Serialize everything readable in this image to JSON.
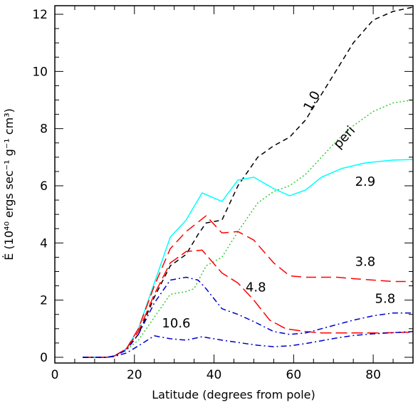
{
  "chart_data": {
    "type": "line",
    "xlabel": "Latitude (degrees from pole)",
    "ylabel": "Ė (10⁴⁰ ergs sec⁻¹ g⁻¹ cm³)",
    "xlim": [
      0,
      90
    ],
    "ylim": [
      -0.2,
      12.3
    ],
    "xticks": [
      0,
      20,
      40,
      60,
      80
    ],
    "yticks": [
      0,
      2,
      4,
      6,
      8,
      10,
      12
    ],
    "grid": false,
    "series": [
      {
        "name": "1.0",
        "color": "#000000",
        "dash": "7,5",
        "x": [
          7,
          10,
          13,
          15,
          18,
          21,
          25,
          29,
          33,
          36,
          38,
          42,
          46,
          51,
          55,
          59,
          63,
          67,
          71,
          75,
          80,
          85,
          90
        ],
        "y": [
          0,
          0,
          0,
          0.05,
          0.3,
          0.8,
          2.1,
          3.2,
          3.6,
          4.3,
          4.7,
          4.8,
          6.0,
          7.0,
          7.4,
          7.7,
          8.3,
          9.2,
          10.1,
          11.0,
          11.8,
          12.1,
          12.25
        ]
      },
      {
        "name": "peri",
        "color": "#33cc33",
        "dash": "2,3",
        "x": [
          7,
          10,
          13,
          15,
          18,
          21,
          25,
          29,
          33,
          35,
          38,
          42,
          46,
          51,
          55,
          59,
          63,
          67,
          71,
          75,
          80,
          85,
          90
        ],
        "y": [
          0,
          0,
          0,
          0.05,
          0.25,
          0.6,
          1.4,
          2.2,
          2.3,
          2.4,
          3.2,
          3.5,
          4.4,
          5.4,
          5.8,
          6.0,
          6.4,
          7.0,
          7.6,
          8.1,
          8.6,
          8.9,
          9.0
        ]
      },
      {
        "name": "2.9",
        "color": "#00ffff",
        "dash": "",
        "x": [
          7,
          10,
          13,
          15,
          18,
          21,
          25,
          29,
          33,
          37,
          42,
          46,
          50,
          55,
          59,
          63,
          67,
          72,
          78,
          85,
          90
        ],
        "y": [
          0,
          0,
          0,
          0.05,
          0.3,
          1.0,
          2.6,
          4.2,
          4.8,
          5.75,
          5.45,
          6.2,
          6.3,
          5.9,
          5.65,
          5.85,
          6.3,
          6.6,
          6.8,
          6.9,
          6.92
        ]
      },
      {
        "name": "3.8",
        "color": "#ff0000",
        "dash": "14,7",
        "x": [
          7,
          10,
          13,
          15,
          18,
          21,
          25,
          29,
          33,
          38,
          42,
          46,
          50,
          55,
          59,
          63,
          67,
          71,
          75,
          80,
          85,
          90
        ],
        "y": [
          0,
          0,
          0,
          0.05,
          0.3,
          1.0,
          2.5,
          3.8,
          4.4,
          4.95,
          4.35,
          4.4,
          4.1,
          3.3,
          2.85,
          2.8,
          2.8,
          2.8,
          2.75,
          2.7,
          2.65,
          2.65
        ]
      },
      {
        "name": "4.8",
        "color": "#ff0000",
        "dash": "16,6",
        "x": [
          7,
          10,
          13,
          15,
          18,
          21,
          25,
          29,
          33,
          37,
          42,
          46,
          50,
          54,
          58,
          63,
          67,
          71,
          75,
          80,
          85,
          90
        ],
        "y": [
          0,
          0,
          0,
          0.05,
          0.3,
          0.9,
          2.2,
          3.3,
          3.7,
          3.75,
          2.95,
          2.6,
          2.0,
          1.3,
          1.0,
          0.9,
          0.85,
          0.85,
          0.85,
          0.85,
          0.86,
          0.88
        ]
      },
      {
        "name": "5.8",
        "color": "#0000cc",
        "dash": "8,4,2,4",
        "x": [
          7,
          10,
          13,
          15,
          18,
          21,
          25,
          29,
          33,
          36,
          38,
          42,
          46,
          50,
          55,
          59,
          63,
          67,
          71,
          75,
          80,
          85,
          90
        ],
        "y": [
          0,
          0,
          0,
          0.05,
          0.25,
          0.8,
          1.9,
          2.7,
          2.8,
          2.7,
          2.4,
          1.7,
          1.5,
          1.25,
          0.9,
          0.8,
          0.85,
          1.0,
          1.15,
          1.3,
          1.45,
          1.55,
          1.55
        ]
      },
      {
        "name": "10.6",
        "color": "#0000cc",
        "dash": "8,4,2,4",
        "x": [
          7,
          10,
          13,
          15,
          18,
          21,
          25,
          29,
          33,
          37,
          42,
          47,
          51,
          55,
          59,
          63,
          67,
          71,
          75,
          80,
          85,
          90
        ],
        "y": [
          0,
          0,
          0,
          0.03,
          0.15,
          0.4,
          0.75,
          0.65,
          0.6,
          0.72,
          0.6,
          0.5,
          0.42,
          0.37,
          0.4,
          0.48,
          0.58,
          0.68,
          0.76,
          0.82,
          0.86,
          0.9
        ]
      }
    ],
    "annotations": [
      {
        "text": "1.0",
        "x": 65.5,
        "y": 8.9,
        "rotate": -62
      },
      {
        "text": "peri",
        "x": 73.5,
        "y": 7.6,
        "rotate": -48
      },
      {
        "text": "2.9",
        "x": 78,
        "y": 6.0,
        "rotate": 0
      },
      {
        "text": "3.8",
        "x": 78,
        "y": 3.2,
        "rotate": 0
      },
      {
        "text": "4.8",
        "x": 50.5,
        "y": 2.3,
        "rotate": 0
      },
      {
        "text": "5.8",
        "x": 83,
        "y": 1.9,
        "rotate": 0
      },
      {
        "text": "10.6",
        "x": 30.5,
        "y": 1.05,
        "rotate": 0
      }
    ]
  }
}
